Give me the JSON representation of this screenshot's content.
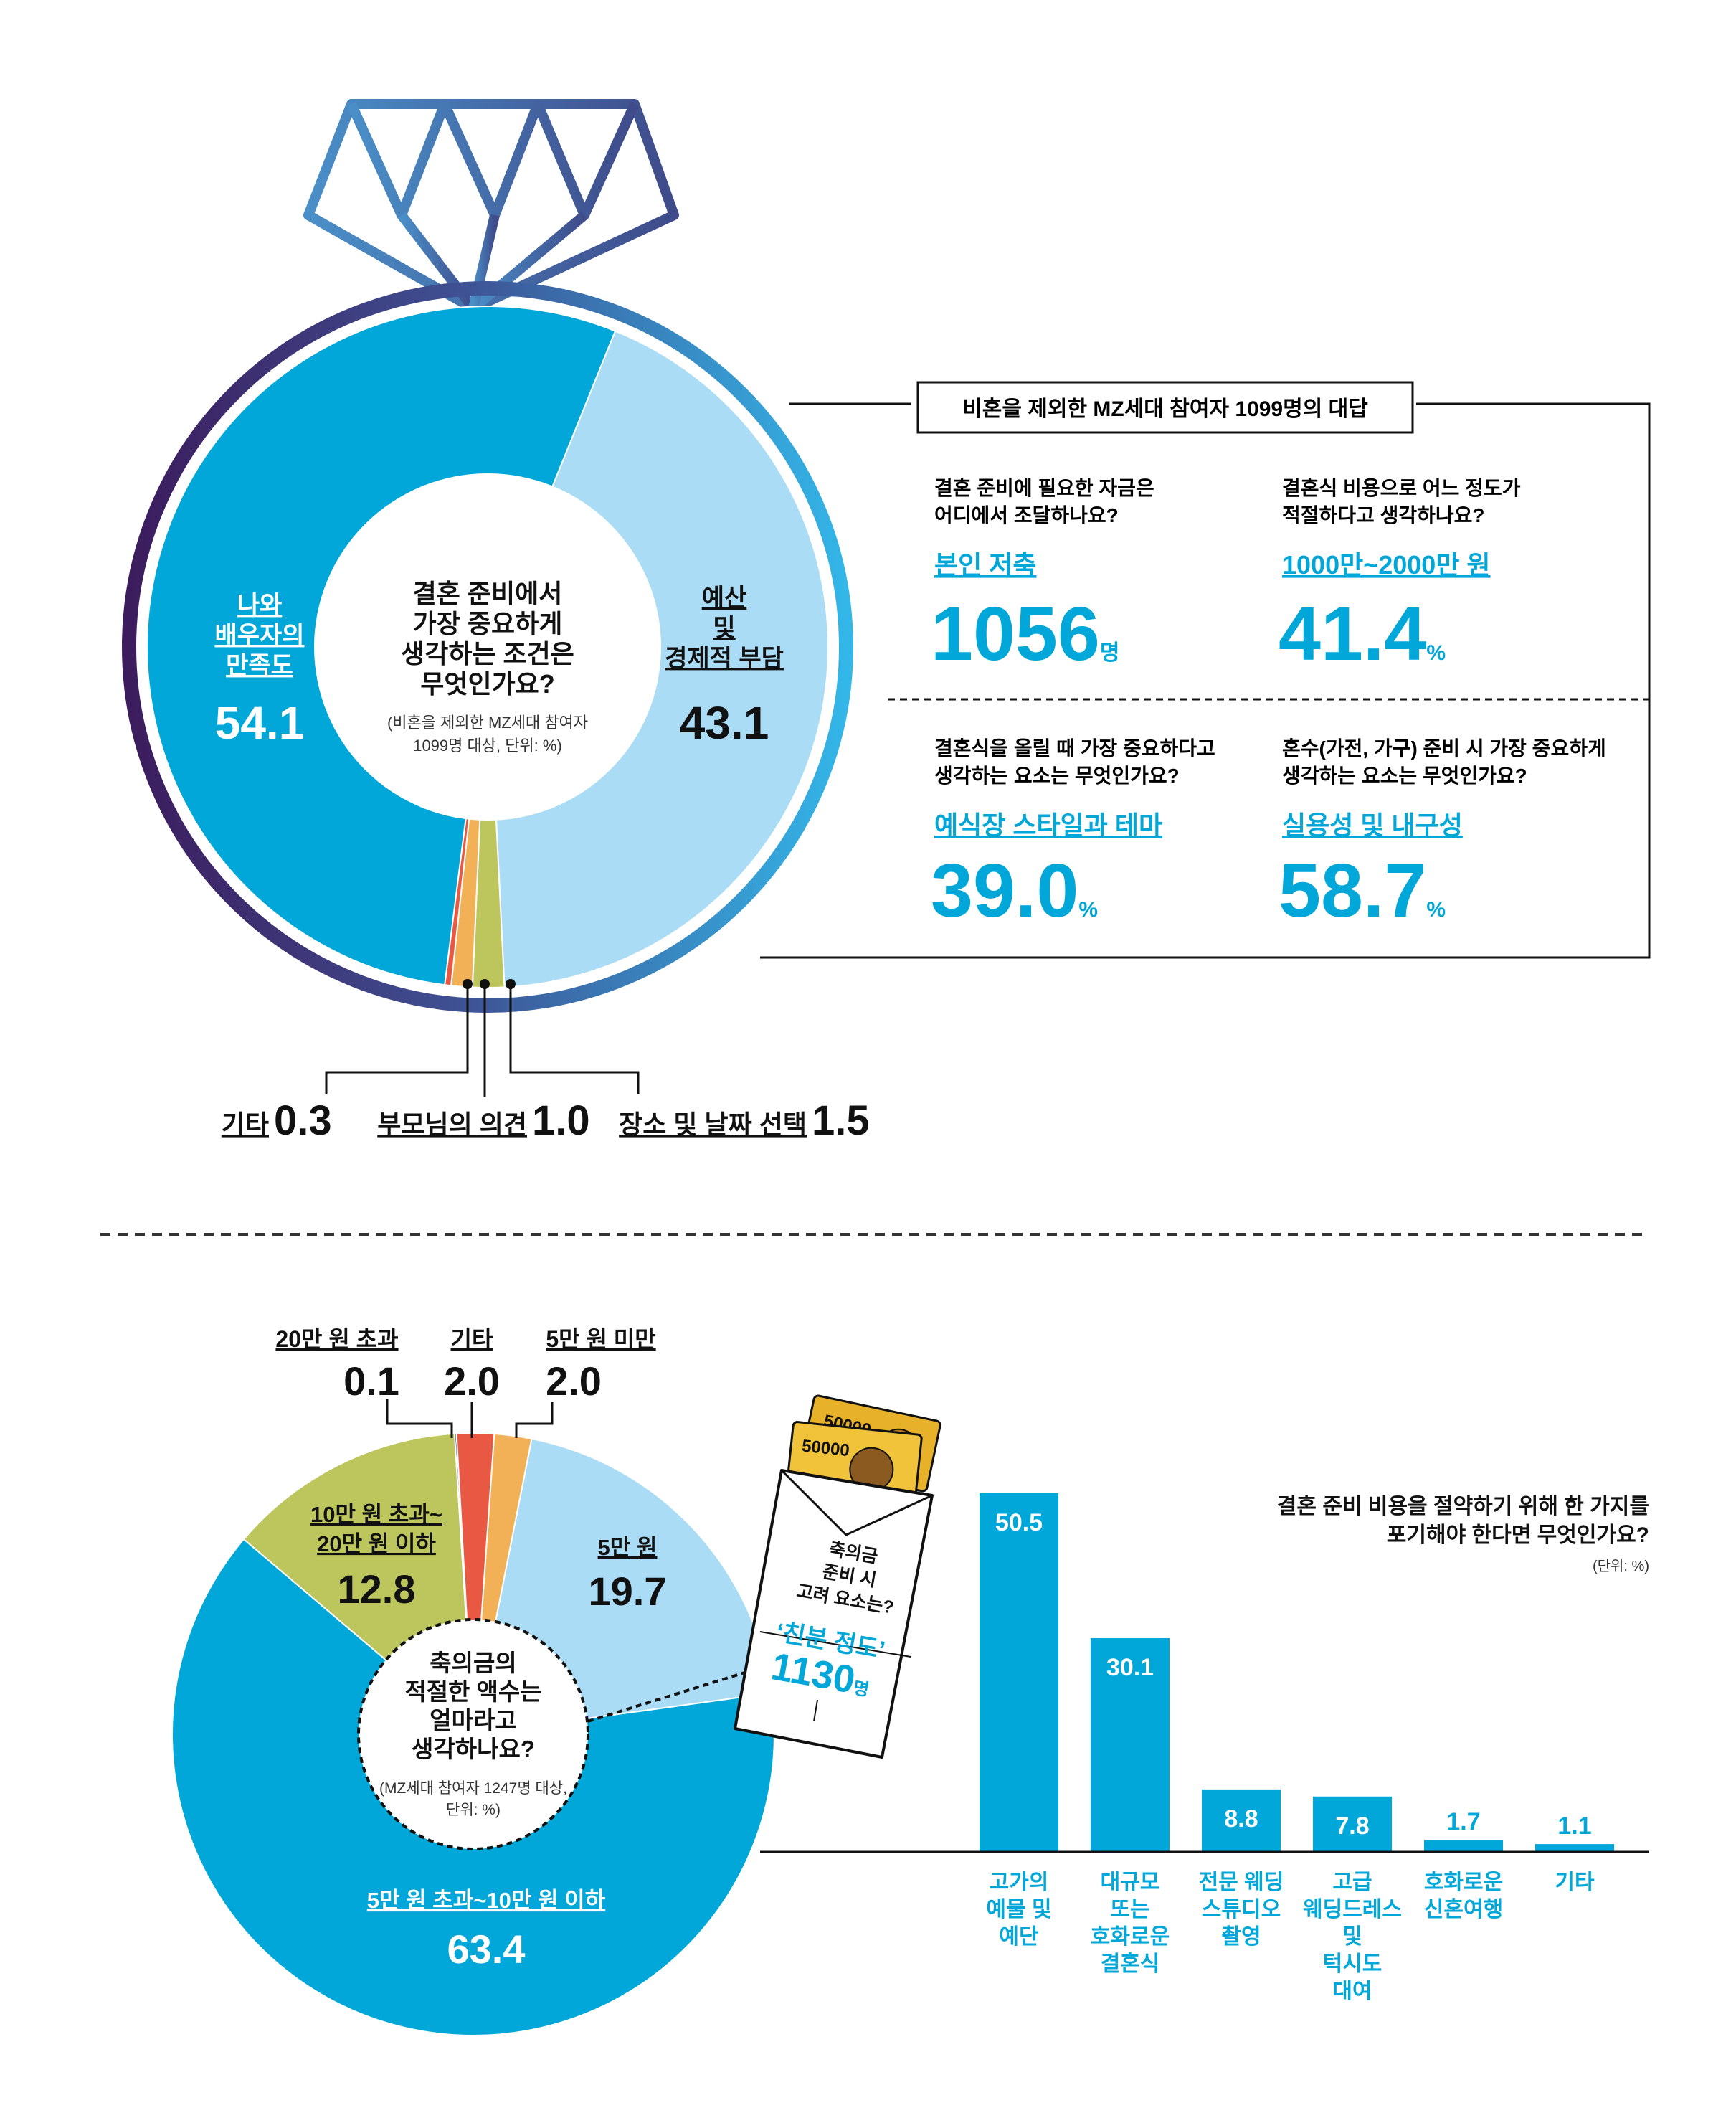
{
  "colors": {
    "blue": "#00a7d8",
    "light_blue": "#aadcf5",
    "green": "#bcc65c",
    "orange": "#f2b157",
    "red": "#e95843",
    "navy": "#1b2f6b",
    "dark_purple": "#3c1c5d",
    "ring_blue": "#33b6e8",
    "black": "#111111"
  },
  "top": {
    "center_question": [
      "결혼 준비에서",
      "가장 중요하게",
      "생각하는 조건은",
      "무엇인가요?"
    ],
    "center_note": [
      "(비혼을 제외한 MZ세대 참여자",
      "1099명 대상, 단위: %)"
    ],
    "labels": {
      "satisfaction": {
        "lines": [
          "나와",
          "배우자의",
          "만족도"
        ],
        "value": "54.1"
      },
      "budget": {
        "lines": [
          "예산",
          "및",
          "경제적 부담"
        ],
        "value": "43.1"
      },
      "other": {
        "label": "기타",
        "value": "0.3"
      },
      "parents": {
        "label": "부모님의 의견",
        "value": "1.0"
      },
      "venue": {
        "label": "장소 및 날짜 선택",
        "value": "1.5"
      }
    },
    "box_title": "비혼을 제외한 MZ세대 참여자 1099명의 대답",
    "box_items": [
      {
        "question": [
          "결혼 준비에 필요한 자금은",
          "어디에서 조달하나요?"
        ],
        "answer": "본인 저축",
        "value": "1056",
        "unit": "명"
      },
      {
        "question": [
          "결혼식 비용으로 어느 정도가",
          "적절하다고 생각하나요?"
        ],
        "answer": "1000만~2000만 원",
        "value": "41.4",
        "unit": "%"
      },
      {
        "question": [
          "결혼식을 올릴 때 가장 중요하다고",
          "생각하는 요소는 무엇인가요?"
        ],
        "answer": "예식장 스타일과 테마",
        "value": "39.0",
        "unit": "%"
      },
      {
        "question": [
          "혼수(가전, 가구) 준비 시 가장 중요하게",
          "생각하는 요소는 무엇인가요?"
        ],
        "answer": "실용성 및 내구성",
        "value": "58.7",
        "unit": "%"
      }
    ]
  },
  "bottom_pie": {
    "center_question": [
      "축의금의",
      "적절한 액수는",
      "얼마라고",
      "생각하나요?"
    ],
    "center_note": [
      "(MZ세대 참여자 1247명 대상,",
      "단위: %)"
    ],
    "labels": {
      "over200k": {
        "label": "20만 원 초과",
        "value": "0.1"
      },
      "other": {
        "label": "기타",
        "value": "2.0"
      },
      "under50k": {
        "label": "5만 원 미만",
        "value": "2.0"
      },
      "100to200k": {
        "lines": [
          "10만 원 초과~",
          "20만 원 이하"
        ],
        "value": "12.8"
      },
      "50k": {
        "label": "5만 원",
        "value": "19.7"
      },
      "50to100k": {
        "label": "5만 원 초과~10만 원 이하",
        "value": "63.4"
      }
    }
  },
  "envelope": {
    "question": [
      "축의금",
      "준비 시",
      "고려 요소는?"
    ],
    "answer": "‘친분 정도’",
    "value": "1130",
    "unit": "명",
    "bill_value": "50000"
  },
  "bar_chart": {
    "title": [
      "결혼 준비 비용을 절약하기 위해 한 가지를",
      "포기해야 한다면 무엇인가요?"
    ],
    "unit_note": "(단위: %)",
    "values_text": [
      "50.5",
      "30.1",
      "8.8",
      "7.8",
      "1.7",
      "1.1"
    ],
    "labels": [
      [
        "고가의",
        "예물 및",
        "예단"
      ],
      [
        "대규모",
        "또는",
        "호화로운",
        "결혼식"
      ],
      [
        "전문 웨딩",
        "스튜디오",
        "촬영"
      ],
      [
        "고급",
        "웨딩드레스",
        "및",
        "턱시도",
        "대여"
      ],
      [
        "호화로운",
        "신혼여행"
      ],
      [
        "기타"
      ]
    ]
  },
  "chart_data": [
    {
      "type": "pie",
      "title": "결혼 준비에서 가장 중요하게 생각하는 조건은 무엇인가요?",
      "categories": [
        "나와 배우자의 만족도",
        "예산 및 경제적 부담",
        "장소 및 날짜 선택",
        "부모님의 의견",
        "기타"
      ],
      "values": [
        54.1,
        43.1,
        1.5,
        1.0,
        0.3
      ]
    },
    {
      "type": "pie",
      "title": "축의금의 적절한 액수는 얼마라고 생각하나요?",
      "categories": [
        "5만 원 미만",
        "5만 원",
        "5만 원 초과~10만 원 이하",
        "10만 원 초과~20만 원 이하",
        "20만 원 초과",
        "기타"
      ],
      "values": [
        2.0,
        19.7,
        63.4,
        12.8,
        0.1,
        2.0
      ]
    },
    {
      "type": "bar",
      "title": "결혼 준비 비용을 절약하기 위해 한 가지를 포기해야 한다면 무엇인가요?",
      "categories": [
        "고가의 예물 및 예단",
        "대규모 또는 호화로운 결혼식",
        "전문 웨딩 스튜디오 촬영",
        "고급 웨딩드레스 및 턱시도 대여",
        "호화로운 신혼여행",
        "기타"
      ],
      "values": [
        50.5,
        30.1,
        8.8,
        7.8,
        1.7,
        1.1
      ],
      "ylim": [
        0,
        50.5
      ]
    }
  ]
}
